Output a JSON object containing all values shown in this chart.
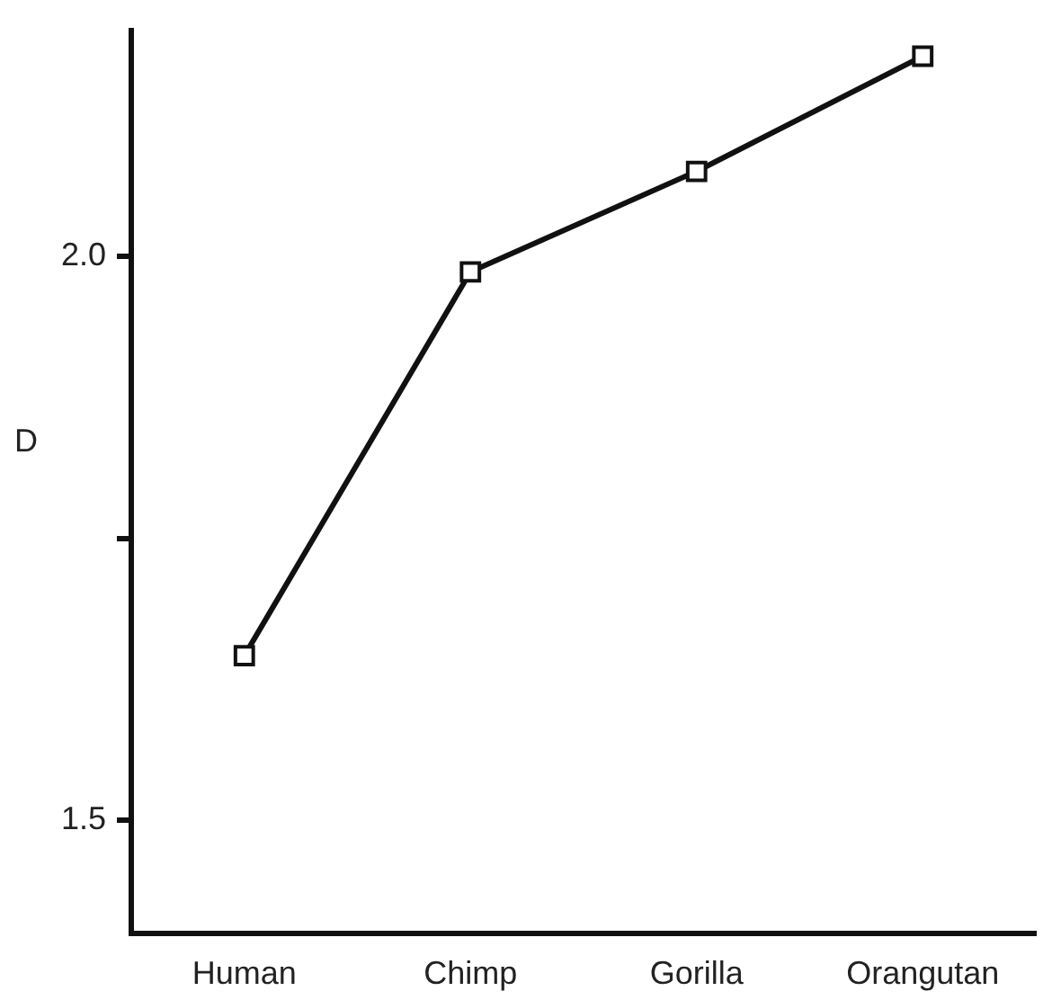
{
  "chart_data": {
    "type": "line",
    "ylabel": "D",
    "categories": [
      "Human",
      "Chimp",
      "Gorilla",
      "Orangutan"
    ],
    "series": [
      {
        "color": "#111111",
        "values": [
          1.646,
          1.986,
          2.075,
          2.177
        ]
      }
    ],
    "ylim": [
      1.4,
      2.2
    ],
    "yticks": [
      1.5,
      {
        "value": 1.75,
        "label": null
      },
      {
        "value": 2,
        "label": "2.0"
      }
    ],
    "grid": false,
    "legend": false,
    "marker": "square",
    "line_style": "solid"
  }
}
